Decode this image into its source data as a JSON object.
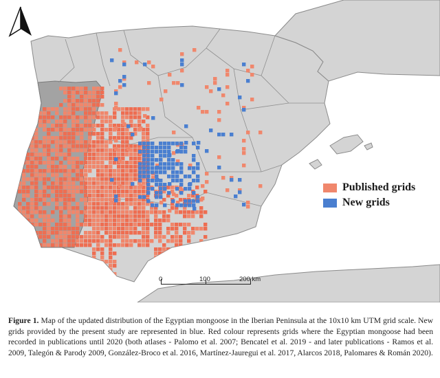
{
  "colors": {
    "sea": "#ffffff",
    "land": "#d4d4d4",
    "land_stroke": "#8a8a8a",
    "published": "#f0876c",
    "published_dense": "#ee6e52",
    "new": "#4a7fd0",
    "country_fill": "#a3a3a3"
  },
  "legend": {
    "published_label": "Published grids",
    "new_label": "New grids"
  },
  "scale": {
    "labels": [
      "0",
      "100",
      "200 km"
    ]
  },
  "caption": {
    "label": "Figure 1.",
    "text": "Map of the updated distribution of the Egyptian mongoose in the Iberian Peninsula at the 10x10 km UTM grid scale. New grids provided by the present study are represented in blue. Red colour represents grids where the Egyptian mongoose had been recorded in publications until 2020 (both atlases - Palomo et al. 2007; Bencatel et al. 2019 - and later publications - Ramos et al. 2009, Talegón & Parody 2009, González-Broco et al. 2016, Martínez-Jauregui et al. 2017, Alarcos 2018, Palomares & Román 2020)."
  },
  "north_arrow": {
    "icon": "north-arrow-icon"
  }
}
